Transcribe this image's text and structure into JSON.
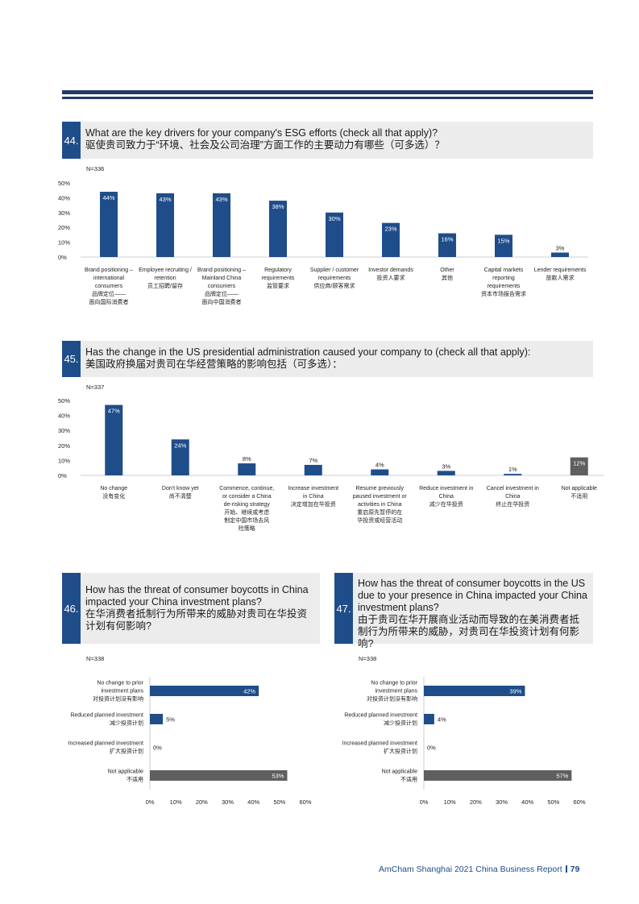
{
  "colors": {
    "primary": "#1f4d89",
    "na": "#5f5f5f",
    "header_bg": "#ececec",
    "rule": "#1f3a68"
  },
  "footer": {
    "text": "AmCham Shanghai 2021 China Business Report",
    "page": "79"
  },
  "q44": {
    "num": "44.",
    "title_en": "What are the key drivers for your company's ESG efforts (check all that apply)?",
    "title_zh": "驱使贵司致力于“环境、社会及公司治理”方面工作的主要动力有哪些（可多选）？",
    "n": "N=336"
  },
  "q45": {
    "num": "45.",
    "title_en": "Has the change in the US presidential administration caused your company to (check all that apply):",
    "title_zh": "美国政府换届对贵司在华经营策略的影响包括（可多选）：",
    "n": "N=337"
  },
  "q46": {
    "num": "46.",
    "title_en": "How has the threat of consumer boycotts in China impacted your China investment plans?",
    "title_zh": "在华消费者抵制行为所带来的威胁对贵司在华投资计划有何影响?",
    "n": "N=338"
  },
  "q47": {
    "num": "47.",
    "title_en": "How has the threat of consumer boycotts in the US due to your presence in China impacted your China investment plans?",
    "title_zh": "由于贵司在华开展商业活动而导致的在美消费者抵制行为所带来的威胁，对贵司在华投资计划有何影响?",
    "n": "N=338"
  },
  "chart_data": [
    {
      "id": "q44",
      "type": "bar",
      "title": "What are the key drivers for your company's ESG efforts (check all that apply)?",
      "ylim": [
        0,
        50
      ],
      "yticks": [
        "0%",
        "10%",
        "20%",
        "30%",
        "40%",
        "50%"
      ],
      "categories": [
        [
          "Brand positioning –",
          "international",
          "consumers",
          "品牌定位——",
          "面向国际消费者"
        ],
        [
          "Employee recruiting /",
          "retention",
          "员工招聘/留存"
        ],
        [
          "Brand positioning –",
          "Mainland China",
          "consumers",
          "品牌定位——",
          "面向中国消费者"
        ],
        [
          "Regulatory",
          "requirements",
          "监管要求"
        ],
        [
          "Supplier / customer",
          "requirements",
          "供应商/顾客需求"
        ],
        [
          "Investor demands",
          "投资人要求"
        ],
        [
          "Other",
          "其他"
        ],
        [
          "Capital markets",
          "reporting",
          "requirements",
          "资本市场报告需求"
        ],
        [
          "Lender requirements",
          "放款人需求"
        ]
      ],
      "values": [
        44,
        43,
        43,
        38,
        30,
        23,
        16,
        15,
        3
      ],
      "labels": [
        "44%",
        "43%",
        "43%",
        "38%",
        "30%",
        "23%",
        "16%",
        "15%",
        "3%"
      ],
      "highlight": [
        false,
        false,
        false,
        false,
        false,
        false,
        false,
        false,
        false
      ]
    },
    {
      "id": "q45",
      "type": "bar",
      "title": "Has the change in the US presidential administration caused your company to (check all that apply):",
      "ylim": [
        0,
        50
      ],
      "yticks": [
        "0%",
        "10%",
        "20%",
        "30%",
        "40%",
        "50%"
      ],
      "categories": [
        [
          "No change",
          "没有变化"
        ],
        [
          "Don't know yet",
          "尚不清楚"
        ],
        [
          "Commence, continue,",
          "or consider a China",
          "de-risking strategy",
          "开始、继续或考虑",
          "制定中国市场去风",
          "险策略"
        ],
        [
          "Increase investment",
          "in China",
          "决定增加在华投资"
        ],
        [
          "Resume previously",
          "paused investment or",
          "activities in China",
          "重启原先暂停的在",
          "华投资或经营活动"
        ],
        [
          "Reduce investment in",
          "China",
          "减少在华投资"
        ],
        [
          "Cancel investment in",
          "China",
          "终止在华投资"
        ],
        [
          "Not applicable",
          "不适用"
        ]
      ],
      "values": [
        47,
        24,
        8,
        7,
        4,
        3,
        1,
        12
      ],
      "labels": [
        "47%",
        "24%",
        "8%",
        "7%",
        "4%",
        "3%",
        "1%",
        "12%"
      ],
      "highlight": [
        false,
        false,
        false,
        false,
        false,
        false,
        false,
        true
      ]
    },
    {
      "id": "q46",
      "type": "bar",
      "orientation": "horizontal",
      "title": "How has the threat of consumer boycotts in China impacted your China investment plans?",
      "xlim": [
        0,
        60
      ],
      "xticks": [
        "0%",
        "10%",
        "20%",
        "30%",
        "40%",
        "50%",
        "60%"
      ],
      "categories": [
        [
          "No change to prior",
          "investment plans",
          "对投资计划没有影响"
        ],
        [
          "Reduced planned investment",
          "减少投资计划"
        ],
        [
          "Increased planned investment",
          "扩大投资计划"
        ],
        [
          "Not applicable",
          "不适用"
        ]
      ],
      "values": [
        42,
        5,
        0,
        53
      ],
      "labels": [
        "42%",
        "5%",
        "0%",
        "53%"
      ],
      "highlight": [
        false,
        false,
        false,
        true
      ]
    },
    {
      "id": "q47",
      "type": "bar",
      "orientation": "horizontal",
      "title": "How has the threat of consumer boycotts in the US due to your presence in China impacted your China investment plans?",
      "xlim": [
        0,
        60
      ],
      "xticks": [
        "0%",
        "10%",
        "20%",
        "30%",
        "40%",
        "50%",
        "60%"
      ],
      "categories": [
        [
          "No change to prior",
          "investment plans",
          "对投资计划没有影响"
        ],
        [
          "Reduced planned investment",
          "减少投资计划"
        ],
        [
          "Increased planned investment",
          "扩大投资计划"
        ],
        [
          "Not applicable",
          "不适用"
        ]
      ],
      "values": [
        39,
        4,
        0,
        57
      ],
      "labels": [
        "39%",
        "4%",
        "0%",
        "57%"
      ],
      "highlight": [
        false,
        false,
        false,
        true
      ]
    }
  ]
}
